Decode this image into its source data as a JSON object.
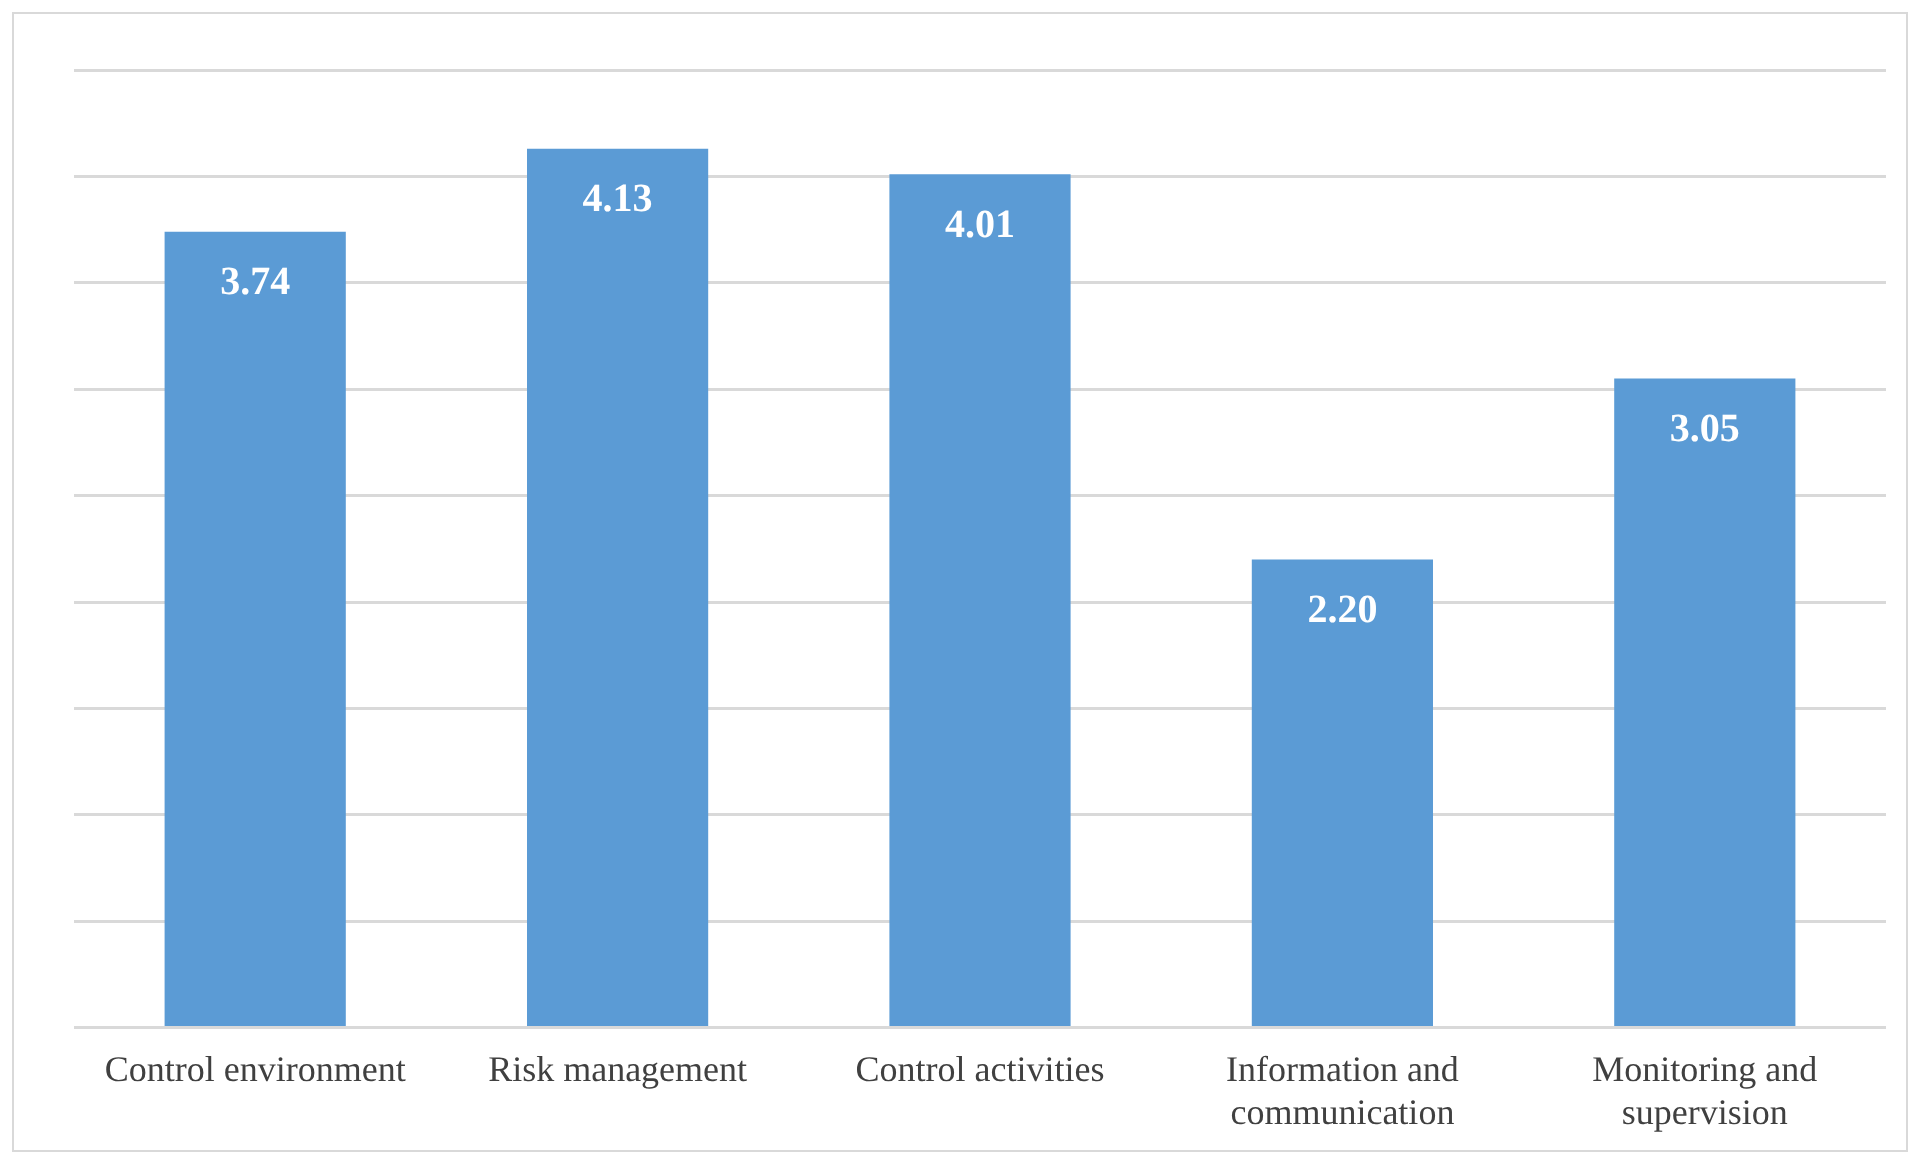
{
  "chart_data": {
    "type": "bar",
    "categories": [
      "Control environment",
      "Risk management",
      "Control activities",
      "Information and communication",
      "Monitoring and supervision"
    ],
    "values": [
      3.74,
      4.13,
      4.01,
      2.2,
      3.05
    ],
    "value_labels": [
      "3.74",
      "4.13",
      "4.01",
      "2.20",
      "3.05"
    ],
    "color": "#5b9bd5",
    "ylim": [
      0,
      4.5
    ],
    "yticks": [
      {
        "value": 0,
        "label": null
      },
      {
        "value": 0.5,
        "label": null
      },
      {
        "value": 1,
        "label": null
      },
      {
        "value": 1.5,
        "label": null
      },
      {
        "value": 2,
        "label": null
      },
      {
        "value": 2.5,
        "label": null
      },
      {
        "value": 3,
        "label": null
      },
      {
        "value": 3.5,
        "label": null
      },
      {
        "value": 4,
        "label": null
      },
      {
        "value": 4.5,
        "label": null
      }
    ],
    "grid": "y",
    "tick_labels": "x"
  }
}
